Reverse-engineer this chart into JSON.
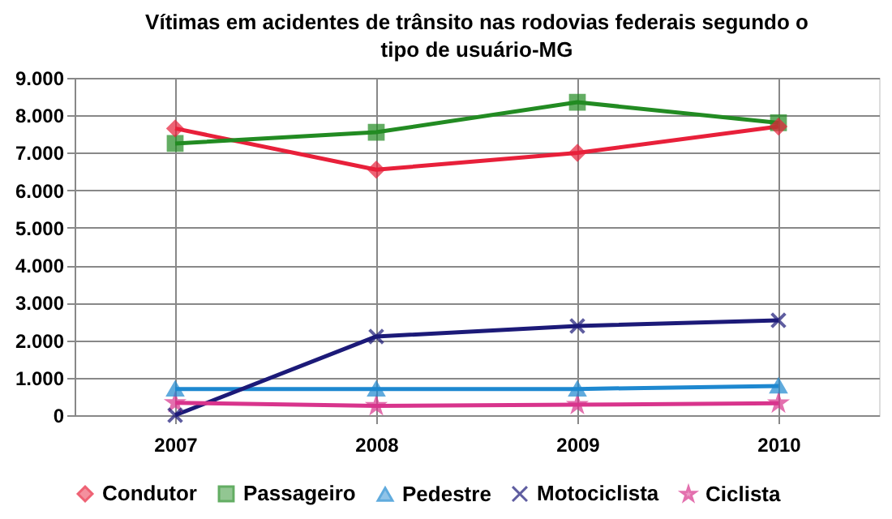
{
  "chart_data": {
    "type": "line",
    "title": "Vítimas em acidentes de trânsito nas rodovias federais segundo o tipo de usuário-MG",
    "categories": [
      "2007",
      "2008",
      "2009",
      "2010"
    ],
    "series": [
      {
        "name": "Condutor",
        "color": "#e8203a",
        "marker": "diamond",
        "values": [
          7650,
          6550,
          7000,
          7700
        ]
      },
      {
        "name": "Passageiro",
        "color": "#228b22",
        "marker": "square",
        "values": [
          7250,
          7550,
          8350,
          7800
        ]
      },
      {
        "name": "Pedestre",
        "color": "#1e88d0",
        "marker": "triangle",
        "values": [
          700,
          700,
          700,
          780
        ]
      },
      {
        "name": "Motociclista",
        "color": "#1c1a78",
        "marker": "cross",
        "values": [
          0,
          2100,
          2380,
          2530
        ]
      },
      {
        "name": "Ciclista",
        "color": "#d8348c",
        "marker": "star",
        "values": [
          330,
          250,
          280,
          320
        ]
      }
    ],
    "ylim": [
      0,
      9000
    ],
    "yticks": [
      0,
      {
        "value": 1000,
        "label": "1.000"
      },
      {
        "value": 2000,
        "label": "2.000"
      },
      {
        "value": 3000,
        "label": "3.000"
      },
      {
        "value": 4000,
        "label": "4.000"
      },
      {
        "value": 5000,
        "label": "5.000"
      },
      {
        "value": 6000,
        "label": "6.000"
      },
      {
        "value": 7000,
        "label": "7.000"
      },
      {
        "value": 8000,
        "label": "8.000"
      },
      {
        "value": 9000,
        "label": "9.000"
      }
    ],
    "grid": true,
    "legend": "bottom",
    "line_style": "solid"
  }
}
